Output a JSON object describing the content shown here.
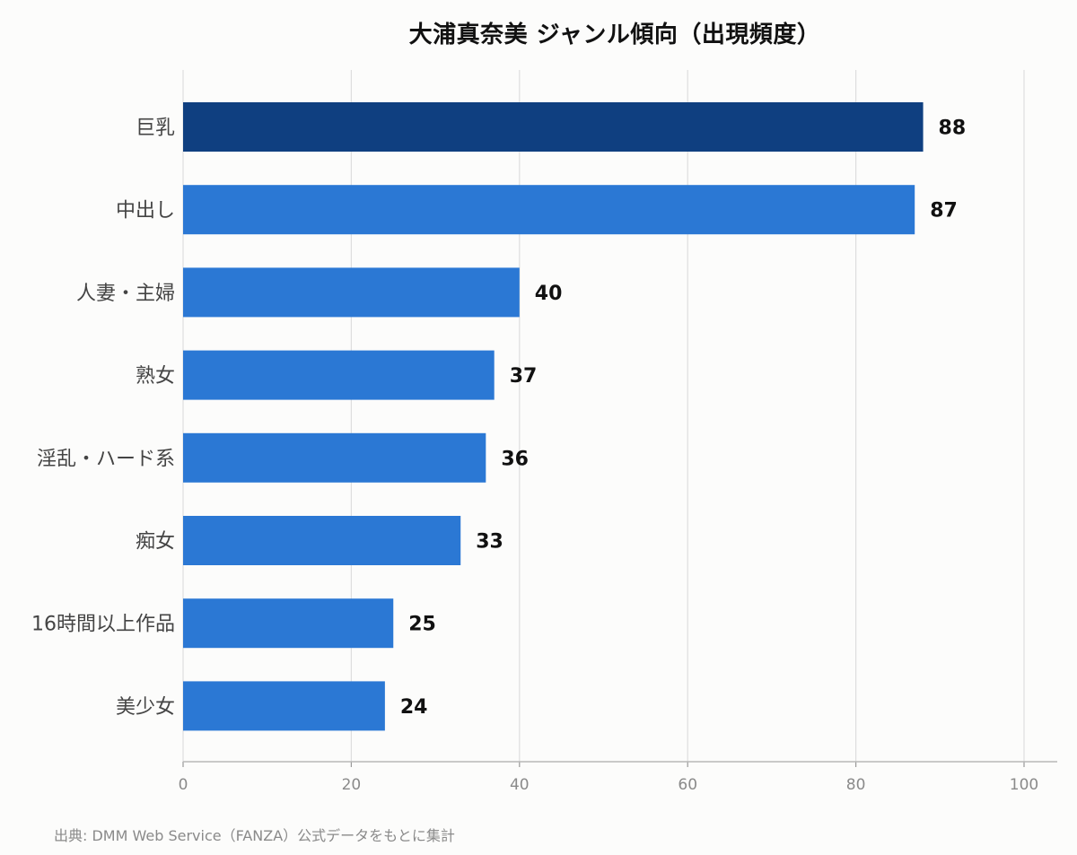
{
  "chart_data": {
    "type": "bar",
    "orientation": "horizontal",
    "title": "大浦真奈美 ジャンル傾向（出現頻度）",
    "categories": [
      "巨乳",
      "中出し",
      "人妻・主婦",
      "熟女",
      "淫乱・ハード系",
      "痴女",
      "16時間以上作品",
      "美少女"
    ],
    "values": [
      88,
      87,
      40,
      37,
      36,
      33,
      25,
      24
    ],
    "xlim": [
      0,
      100
    ],
    "xticks": [
      0,
      20,
      40,
      60,
      80,
      100
    ],
    "grid": true,
    "highlight_color": "#0f3f80",
    "bar_color": "#2b78d4"
  },
  "source_note": "出典: DMM Web Service（FANZA）公式データをもとに集計"
}
